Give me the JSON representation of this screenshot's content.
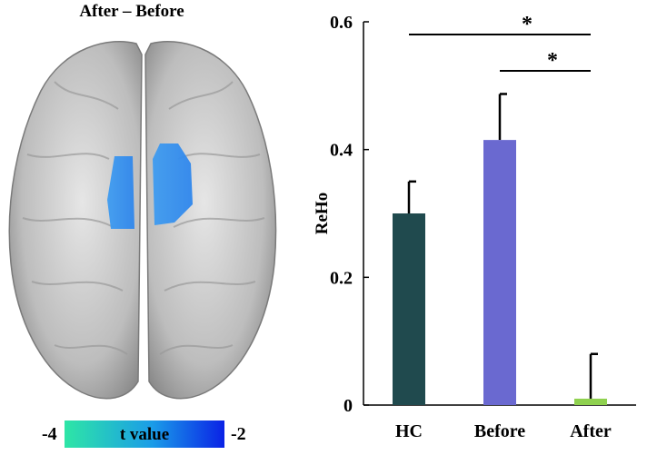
{
  "brain": {
    "title": "After – Before",
    "colorbar": {
      "min_label": "-4",
      "max_label": "-2",
      "label": "t value",
      "color_low": "#2ee6a6",
      "color_high": "#0a22e6"
    }
  },
  "chart_data": {
    "type": "bar",
    "categories": [
      "HC",
      "Before",
      "After"
    ],
    "values": [
      0.3,
      0.415,
      0.01
    ],
    "errors": [
      0.05,
      0.072,
      0.07
    ],
    "colors": [
      "#204a4e",
      "#6a69d0",
      "#8fd14f"
    ],
    "ylabel": "ReHo",
    "ylim": [
      0,
      0.6
    ],
    "yticks": [
      0,
      0.2,
      0.4,
      0.6
    ],
    "ytick_labels": [
      "0",
      "0.2",
      "0.4",
      "0.6"
    ],
    "significance": [
      {
        "from": "HC",
        "to": "After",
        "label": "*"
      },
      {
        "from": "Before",
        "to": "After",
        "label": "*"
      }
    ]
  }
}
